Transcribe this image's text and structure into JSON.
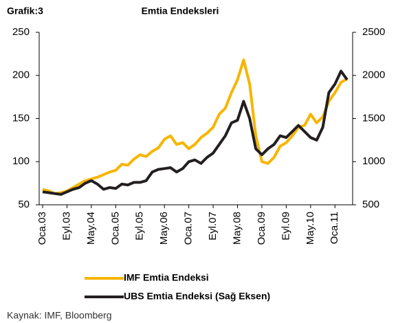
{
  "label": "Grafik:3",
  "source": "Kaynak: IMF, Bloomberg",
  "chart_data": {
    "type": "line",
    "title": "Emtia Endeksleri",
    "categories": [
      "Oca.03",
      null,
      null,
      null,
      "Eyl.03",
      null,
      null,
      null,
      "May.04",
      null,
      null,
      null,
      "Oca.05",
      null,
      null,
      null,
      "Eyl.05",
      null,
      null,
      null,
      "May.06",
      null,
      null,
      null,
      "Oca.07",
      null,
      null,
      null,
      "Eyl.07",
      null,
      null,
      null,
      "May.08",
      null,
      null,
      null,
      "Oca.09",
      null,
      null,
      null,
      "Eyl.09",
      null,
      null,
      null,
      "May.10",
      null,
      null,
      null,
      "Oca.11",
      null,
      null
    ],
    "series": [
      {
        "name": "IMF Emtia Endeksi",
        "color": "#f7b500",
        "values": [
          68,
          66,
          63,
          64,
          66,
          70,
          74,
          78,
          80,
          82,
          85,
          88,
          90,
          97,
          96,
          103,
          108,
          106,
          112,
          116,
          126,
          130,
          120,
          122,
          115,
          120,
          128,
          133,
          140,
          155,
          162,
          180,
          195,
          218,
          190,
          130,
          100,
          98,
          105,
          118,
          122,
          130,
          140,
          142,
          155,
          145,
          152,
          170,
          180,
          192,
          196
        ]
      },
      {
        "name": "UBS Emtia Endeksi (Sağ Eksen)",
        "color": "#231f20",
        "axis": "y2",
        "values": [
          650,
          640,
          630,
          620,
          650,
          680,
          700,
          750,
          780,
          740,
          680,
          700,
          690,
          740,
          730,
          760,
          760,
          780,
          880,
          910,
          920,
          930,
          880,
          920,
          1000,
          1020,
          980,
          1050,
          1100,
          1200,
          1300,
          1450,
          1480,
          1700,
          1500,
          1150,
          1080,
          1150,
          1200,
          1300,
          1280,
          1350,
          1420,
          1350,
          1280,
          1250,
          1400,
          1800,
          1900,
          2050,
          1950
        ]
      }
    ],
    "ylim": [
      50,
      250
    ],
    "yticks": [
      50,
      100,
      150,
      200,
      250
    ],
    "y2lim": [
      500,
      2500
    ],
    "y2ticks": [
      500,
      1000,
      1500,
      2000,
      2500
    ],
    "grid": false
  }
}
